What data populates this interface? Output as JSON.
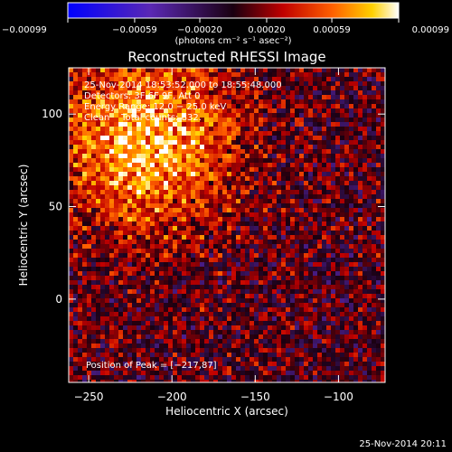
{
  "chart_data": {
    "type": "heatmap",
    "title": "Reconstructed RHESSI Image",
    "xlabel": "Heliocentric X (arcsec)",
    "ylabel": "Heliocentric Y (arcsec)",
    "xlim": [
      -262,
      -72
    ],
    "ylim": [
      -45,
      125
    ],
    "x_ticks": [
      "−250",
      "−200",
      "−150",
      "−100"
    ],
    "x_tick_values": [
      -250,
      -200,
      -150,
      -100
    ],
    "y_ticks": [
      "100",
      "50",
      "0"
    ],
    "y_tick_values": [
      100,
      50,
      0
    ],
    "colorbar": {
      "tick_labels": [
        "−0.00099",
        "−0.00059",
        "−0.00020",
        "0.00020",
        "0.00059",
        "0.00099"
      ],
      "tick_values": [
        -0.00099,
        -0.00059,
        -0.0002,
        0.0002,
        0.00059,
        0.00099
      ],
      "range": [
        -0.00099,
        0.00099
      ],
      "unit_label": "(photons cm⁻² s⁻¹ asec⁻²)"
    },
    "annotations": [
      "25-Nov-2014 18:53:52.000 to 18:55:48.000",
      "Detectors: 3F 6F 9F, Att 0",
      "Energy Range: 12.0 − 25.0 keV",
      "Clean    Total counts: 832."
    ],
    "peak_label": "Position of Peak = [−217,87]",
    "peak": [
      -217,
      87
    ],
    "grid": false
  },
  "footer": {
    "timestamp": "25-Nov-2014 20:11"
  }
}
